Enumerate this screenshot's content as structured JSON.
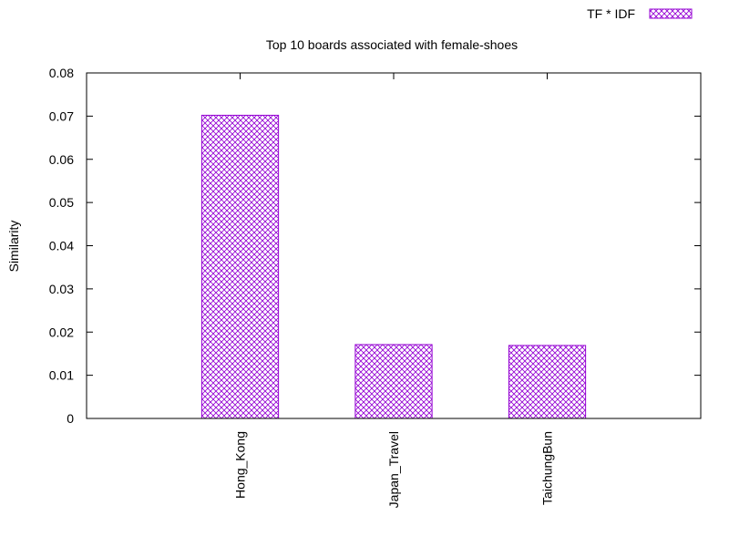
{
  "chart_data": {
    "type": "bar",
    "title": "Top 10 boards associated with female-shoes",
    "xlabel": "",
    "ylabel": "Similarity",
    "categories": [
      "Hong_Kong",
      "Japan_Travel",
      "TaichungBun"
    ],
    "series": [
      {
        "name": "TF * IDF",
        "values": [
          0.0702,
          0.0171,
          0.0169
        ]
      }
    ],
    "ylim": [
      0,
      0.08
    ],
    "yticks": [
      "0",
      "0.01",
      "0.02",
      "0.03",
      "0.04",
      "0.05",
      "0.06",
      "0.07",
      "0.08"
    ],
    "grid": false,
    "legend": "top-right",
    "bar_color": "#9400d3",
    "fill_pattern": "crosshatch"
  }
}
